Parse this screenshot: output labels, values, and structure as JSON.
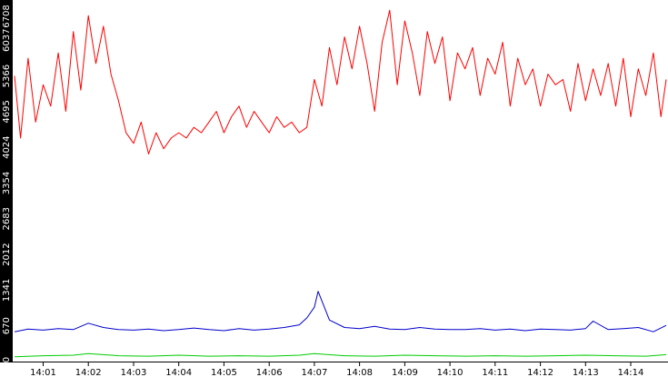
{
  "chart_data": {
    "type": "line",
    "title": "",
    "xlabel": "",
    "ylabel": "",
    "x_ticks": [
      "14:01",
      "14:02",
      "14:03",
      "14:04",
      "14:05",
      "14:06",
      "14:07",
      "14:08",
      "14:09",
      "14:10",
      "14:11",
      "14:12",
      "14:13",
      "14:14"
    ],
    "y_ticks": [
      "0",
      "670",
      "1341",
      "2012",
      "2683",
      "3354",
      "4024",
      "4695",
      "5366",
      "6037",
      "6708"
    ],
    "ylim": [
      0,
      6708
    ],
    "xlim": [
      "14:00:22",
      "14:14:47"
    ],
    "grid": false,
    "legend": "none",
    "series": [
      {
        "color": "#ff0000",
        "x": [
          "14:00:22",
          "14:00:30",
          "14:00:40",
          "14:00:50",
          "14:01:00",
          "14:01:10",
          "14:01:20",
          "14:01:30",
          "14:01:40",
          "14:01:50",
          "14:02:00",
          "14:02:10",
          "14:02:20",
          "14:02:30",
          "14:02:40",
          "14:02:50",
          "14:03:00",
          "14:03:10",
          "14:03:20",
          "14:03:30",
          "14:03:40",
          "14:03:50",
          "14:04:00",
          "14:04:10",
          "14:04:20",
          "14:04:30",
          "14:04:40",
          "14:04:50",
          "14:05:00",
          "14:05:10",
          "14:05:20",
          "14:05:30",
          "14:05:40",
          "14:05:50",
          "14:06:00",
          "14:06:10",
          "14:06:20",
          "14:06:30",
          "14:06:40",
          "14:06:50",
          "14:07:00",
          "14:07:10",
          "14:07:20",
          "14:07:30",
          "14:07:40",
          "14:07:50",
          "14:08:00",
          "14:08:10",
          "14:08:20",
          "14:08:30",
          "14:08:40",
          "14:08:50",
          "14:09:00",
          "14:09:10",
          "14:09:20",
          "14:09:30",
          "14:09:40",
          "14:09:50",
          "14:10:00",
          "14:10:10",
          "14:10:20",
          "14:10:30",
          "14:10:40",
          "14:10:50",
          "14:11:00",
          "14:11:10",
          "14:11:20",
          "14:11:30",
          "14:11:40",
          "14:11:50",
          "14:12:00",
          "14:12:10",
          "14:12:20",
          "14:12:30",
          "14:12:40",
          "14:12:50",
          "14:13:00",
          "14:13:10",
          "14:13:20",
          "14:13:30",
          "14:13:40",
          "14:13:50",
          "14:14:00",
          "14:14:10",
          "14:14:20",
          "14:14:30",
          "14:14:40",
          "14:14:47"
        ],
        "values": [
          5366,
          4200,
          5700,
          4500,
          5200,
          4800,
          5800,
          4700,
          6200,
          5100,
          6500,
          5600,
          6300,
          5400,
          4900,
          4300,
          4100,
          4500,
          3900,
          4300,
          4000,
          4200,
          4300,
          4200,
          4400,
          4300,
          4500,
          4700,
          4300,
          4600,
          4800,
          4400,
          4700,
          4500,
          4300,
          4600,
          4400,
          4500,
          4300,
          4400,
          5300,
          4800,
          5900,
          5200,
          6100,
          5500,
          6300,
          5600,
          4700,
          6000,
          6600,
          5200,
          6400,
          5800,
          5000,
          6200,
          5600,
          6100,
          4900,
          5800,
          5500,
          5900,
          5000,
          5700,
          5400,
          6000,
          4800,
          5700,
          5200,
          5500,
          4800,
          5400,
          5200,
          5300,
          4700,
          5600,
          4900,
          5500,
          5000,
          5600,
          4800,
          5700,
          4600,
          5500,
          5000,
          5800,
          4600,
          5300
        ]
      },
      {
        "color": "#0000cc",
        "x": [
          "14:00:22",
          "14:00:40",
          "14:01:00",
          "14:01:20",
          "14:01:40",
          "14:02:00",
          "14:02:20",
          "14:02:40",
          "14:03:00",
          "14:03:20",
          "14:03:40",
          "14:04:00",
          "14:04:20",
          "14:04:40",
          "14:05:00",
          "14:05:20",
          "14:05:40",
          "14:06:00",
          "14:06:20",
          "14:06:40",
          "14:06:50",
          "14:07:00",
          "14:07:05",
          "14:07:20",
          "14:07:40",
          "14:08:00",
          "14:08:20",
          "14:08:40",
          "14:09:00",
          "14:09:20",
          "14:09:40",
          "14:10:00",
          "14:10:20",
          "14:10:40",
          "14:11:00",
          "14:11:20",
          "14:11:40",
          "14:12:00",
          "14:12:20",
          "14:12:40",
          "14:13:00",
          "14:13:10",
          "14:13:30",
          "14:13:50",
          "14:14:10",
          "14:14:30",
          "14:14:47"
        ],
        "values": [
          560,
          610,
          590,
          620,
          600,
          720,
          640,
          600,
          590,
          610,
          580,
          600,
          630,
          600,
          580,
          620,
          590,
          610,
          640,
          690,
          820,
          1020,
          1320,
          780,
          640,
          620,
          660,
          610,
          600,
          640,
          610,
          600,
          600,
          620,
          590,
          610,
          580,
          610,
          600,
          590,
          620,
          760,
          600,
          620,
          640,
          560,
          680
        ]
      },
      {
        "color": "#00cc00",
        "x": [
          "14:00:22",
          "14:01:00",
          "14:01:40",
          "14:02:00",
          "14:02:40",
          "14:03:20",
          "14:04:00",
          "14:04:40",
          "14:05:20",
          "14:06:00",
          "14:06:40",
          "14:07:00",
          "14:07:40",
          "14:08:20",
          "14:09:00",
          "14:09:40",
          "14:10:20",
          "14:11:00",
          "14:11:40",
          "14:12:20",
          "14:13:00",
          "14:13:40",
          "14:14:20",
          "14:14:47"
        ],
        "values": [
          90,
          110,
          120,
          150,
          110,
          100,
          120,
          100,
          110,
          100,
          120,
          150,
          110,
          100,
          120,
          110,
          100,
          110,
          100,
          110,
          120,
          110,
          100,
          130
        ]
      }
    ]
  }
}
